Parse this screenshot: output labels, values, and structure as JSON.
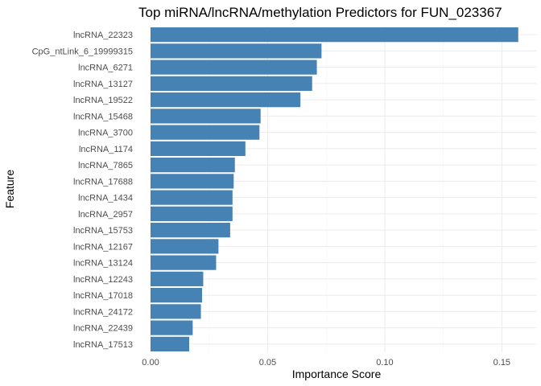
{
  "chart_data": {
    "type": "bar",
    "orientation": "horizontal",
    "title": "Top miRNA/lncRNA/methylation Predictors for FUN_023367",
    "xlabel": "Importance Score",
    "ylabel": "Feature",
    "xlim": [
      0,
      0.165
    ],
    "x_ticks": [
      0,
      0.05,
      0.1,
      0.15
    ],
    "x_tick_labels": [
      "0.00",
      "0.05",
      "0.10",
      "0.15"
    ],
    "grid": true,
    "legend": "none",
    "bar_color": "#4682B4",
    "categories": [
      "lncRNA_22323",
      "CpG_ntLink_6_19999315",
      "lncRNA_6271",
      "lncRNA_13127",
      "lncRNA_19522",
      "lncRNA_15468",
      "lncRNA_3700",
      "lncRNA_1174",
      "lncRNA_7865",
      "lncRNA_17688",
      "lncRNA_1434",
      "lncRNA_2957",
      "lncRNA_15753",
      "lncRNA_12167",
      "lncRNA_13124",
      "lncRNA_12243",
      "lncRNA_17018",
      "lncRNA_24172",
      "lncRNA_22439",
      "lncRNA_17513"
    ],
    "values": [
      0.157,
      0.073,
      0.071,
      0.069,
      0.064,
      0.047,
      0.0465,
      0.0405,
      0.036,
      0.0355,
      0.035,
      0.035,
      0.034,
      0.029,
      0.028,
      0.0225,
      0.022,
      0.0215,
      0.018,
      0.0165
    ]
  }
}
